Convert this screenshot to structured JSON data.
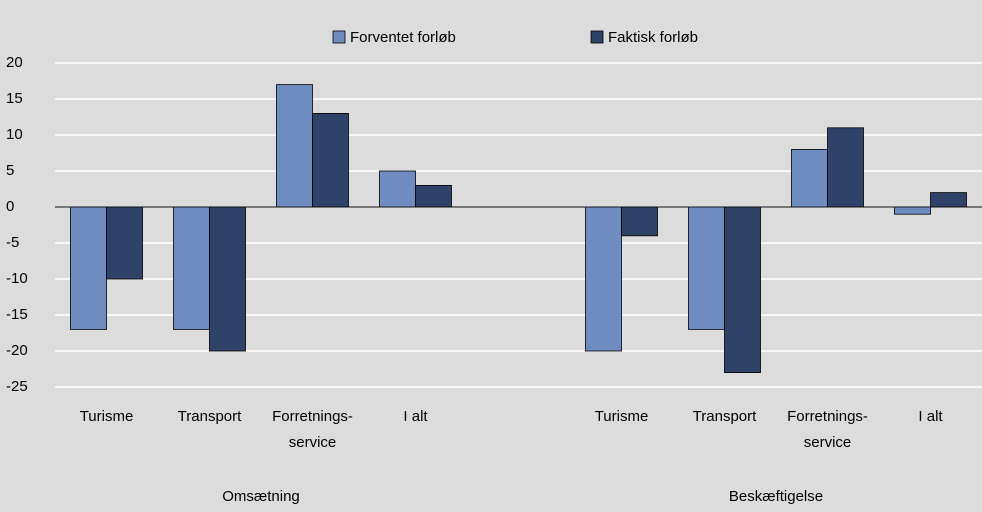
{
  "chart_data": {
    "type": "bar",
    "categories": [
      "Turisme",
      "Transport",
      "Forretnings-service",
      "I alt",
      null,
      "Turisme",
      "Transport",
      "Forretnings-service",
      "I alt"
    ],
    "group_labels": [
      "Omsætning",
      "Beskæftigelse"
    ],
    "series": [
      {
        "name": "Forventet forløb",
        "color": "#6f8cc0",
        "values": [
          -17,
          -17,
          17,
          5,
          null,
          -20,
          -17,
          8,
          -1
        ]
      },
      {
        "name": "Faktisk forløb",
        "color": "#2f4368",
        "values": [
          -10,
          -20,
          13,
          3,
          null,
          -4,
          -23,
          11,
          2
        ]
      }
    ],
    "ylim": [
      -25,
      20
    ],
    "yticks": [
      -25,
      -20,
      -15,
      -10,
      -5,
      0,
      5,
      10,
      15,
      20
    ],
    "grid": true,
    "legend": "top"
  }
}
